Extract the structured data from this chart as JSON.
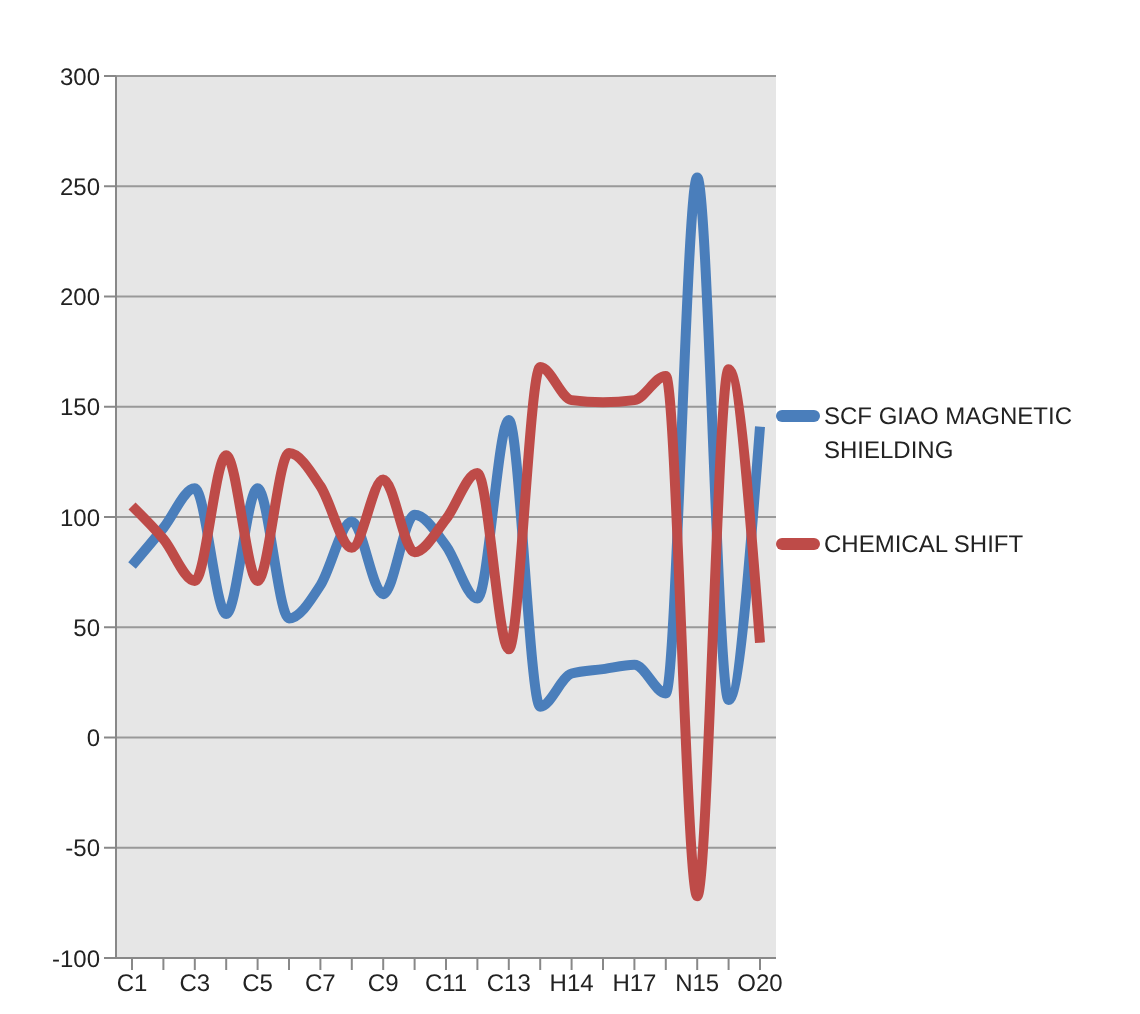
{
  "chart_data": {
    "type": "line",
    "categories": [
      "C1",
      null,
      "C3",
      null,
      "C5",
      null,
      "C7",
      null,
      "C9",
      null,
      "C11",
      null,
      "C13",
      null,
      "H14",
      null,
      "H17",
      null,
      "N15",
      null,
      "O20"
    ],
    "series": [
      {
        "name": "SCF GIAO MAGNETIC SHIELDING",
        "color": "#4a7ebb",
        "values": [
          78,
          95,
          113,
          56,
          113,
          54,
          69,
          98,
          65,
          101,
          87,
          63,
          144,
          14,
          29,
          31,
          33,
          20,
          254,
          17,
          141
        ]
      },
      {
        "name": "CHEMICAL SHIFT",
        "color": "#be4b48",
        "values": [
          105,
          90,
          71,
          128,
          71,
          129,
          114,
          86,
          117,
          84,
          99,
          120,
          40,
          168,
          153,
          152,
          153,
          164,
          -72,
          167,
          43
        ]
      }
    ],
    "ylim": [
      -100,
      300
    ],
    "yticks": [
      -100,
      -50,
      0,
      50,
      100,
      150,
      200,
      250,
      300
    ],
    "grid": "y",
    "legend": "right",
    "marker": "none",
    "line_style": "solid"
  }
}
